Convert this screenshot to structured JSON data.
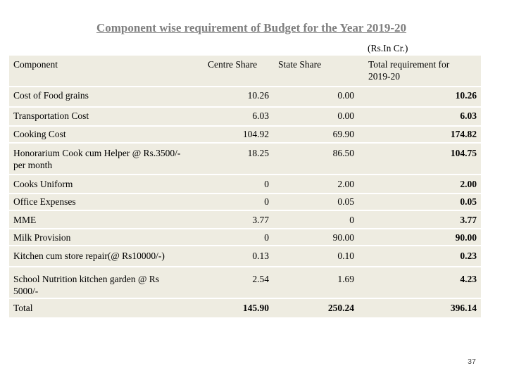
{
  "title": "Component wise requirement of Budget for the Year 2019-20",
  "units": "(Rs.In Cr.)",
  "headers": {
    "component": "Component",
    "centre": "Centre Share",
    "state": "State Share",
    "total": "Total requirement for 2019-20"
  },
  "rows": [
    {
      "component": "Cost of Food grains",
      "centre": "10.26",
      "state": "0.00",
      "total": "10.26"
    },
    {
      "component": "Transportation Cost",
      "centre": "6.03",
      "state": "0.00",
      "total": "6.03"
    },
    {
      "component": "Cooking Cost",
      "centre": "104.92",
      "state": "69.90",
      "total": "174.82"
    },
    {
      "component": "Honorarium Cook cum Helper @ Rs.3500/- per month",
      "centre": "18.25",
      "state": "86.50",
      "total": "104.75"
    },
    {
      "component": "Cooks Uniform",
      "centre": "0",
      "state": "2.00",
      "total": "2.00"
    },
    {
      "component": "Office Expenses",
      "centre": "0",
      "state": "0.05",
      "total": "0.05"
    },
    {
      "component": "MME",
      "centre": "3.77",
      "state": "0",
      "total": "3.77"
    },
    {
      "component": "Milk Provision",
      "centre": "0",
      "state": "90.00",
      "total": "90.00"
    },
    {
      "component": "Kitchen cum store repair(@ Rs10000/-)",
      "centre": "0.13",
      "state": "0.10",
      "total": "0.23"
    },
    {
      "component": "School Nutrition kitchen garden @ Rs 5000/-",
      "centre": "2.54",
      "state": "1.69",
      "total": "4.23"
    },
    {
      "component": "Total",
      "centre": "145.90",
      "state": "250.24",
      "total": "396.14"
    }
  ],
  "page_number": "37"
}
